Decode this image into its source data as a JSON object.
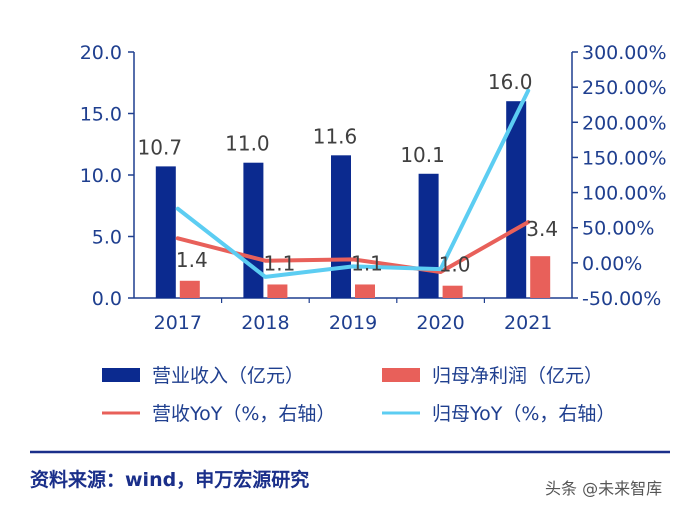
{
  "chart_data": {
    "type": "bar",
    "categories": [
      "2017",
      "2018",
      "2019",
      "2020",
      "2021"
    ],
    "series": [
      {
        "name": "营业收入（亿元）",
        "kind": "bar",
        "axis": "left",
        "color": "#0b2a8f",
        "values": [
          10.7,
          11.0,
          11.6,
          10.1,
          16.0
        ],
        "labels": [
          "10.7",
          "11.0",
          "11.6",
          "10.1",
          "16.0"
        ]
      },
      {
        "name": "归母净利润（亿元）",
        "kind": "bar",
        "axis": "left",
        "color": "#e8605a",
        "values": [
          1.4,
          1.1,
          1.1,
          1.0,
          3.4
        ],
        "labels": [
          "1.4",
          "1.1",
          "1.1",
          "1.0",
          "3.4"
        ]
      },
      {
        "name": "营收YoY（%，右轴）",
        "kind": "line",
        "axis": "right",
        "color": "#e8605a",
        "values": [
          35,
          3,
          5,
          -13,
          58
        ]
      },
      {
        "name": "归母YoY（%，右轴）",
        "kind": "line",
        "axis": "right",
        "color": "#5ccdf2",
        "values": [
          77,
          -20,
          -5,
          -9,
          245
        ]
      }
    ],
    "ylim": [
      0,
      20
    ],
    "yticks": [
      "0.0",
      "5.0",
      "10.0",
      "15.0",
      "20.0"
    ],
    "y2lim": [
      -50,
      300
    ],
    "y2ticks": [
      "-50.00%",
      "0.00%",
      "50.00%",
      "100.00%",
      "150.00%",
      "200.00%",
      "250.00%",
      "300.00%"
    ],
    "title": "",
    "xlabel": "",
    "ylabel": ""
  },
  "legend": {
    "bar1": "营业收入（亿元）",
    "bar2": "归母净利润（亿元）",
    "line1": "营收YoY（%，右轴）",
    "line2": "归母YoY（%，右轴）"
  },
  "source": "资料来源：wind，申万宏源研究",
  "watermark": "头条 @未来智库",
  "colors": {
    "axis": "#1f3f8f",
    "rule": "#1a2f8a"
  }
}
